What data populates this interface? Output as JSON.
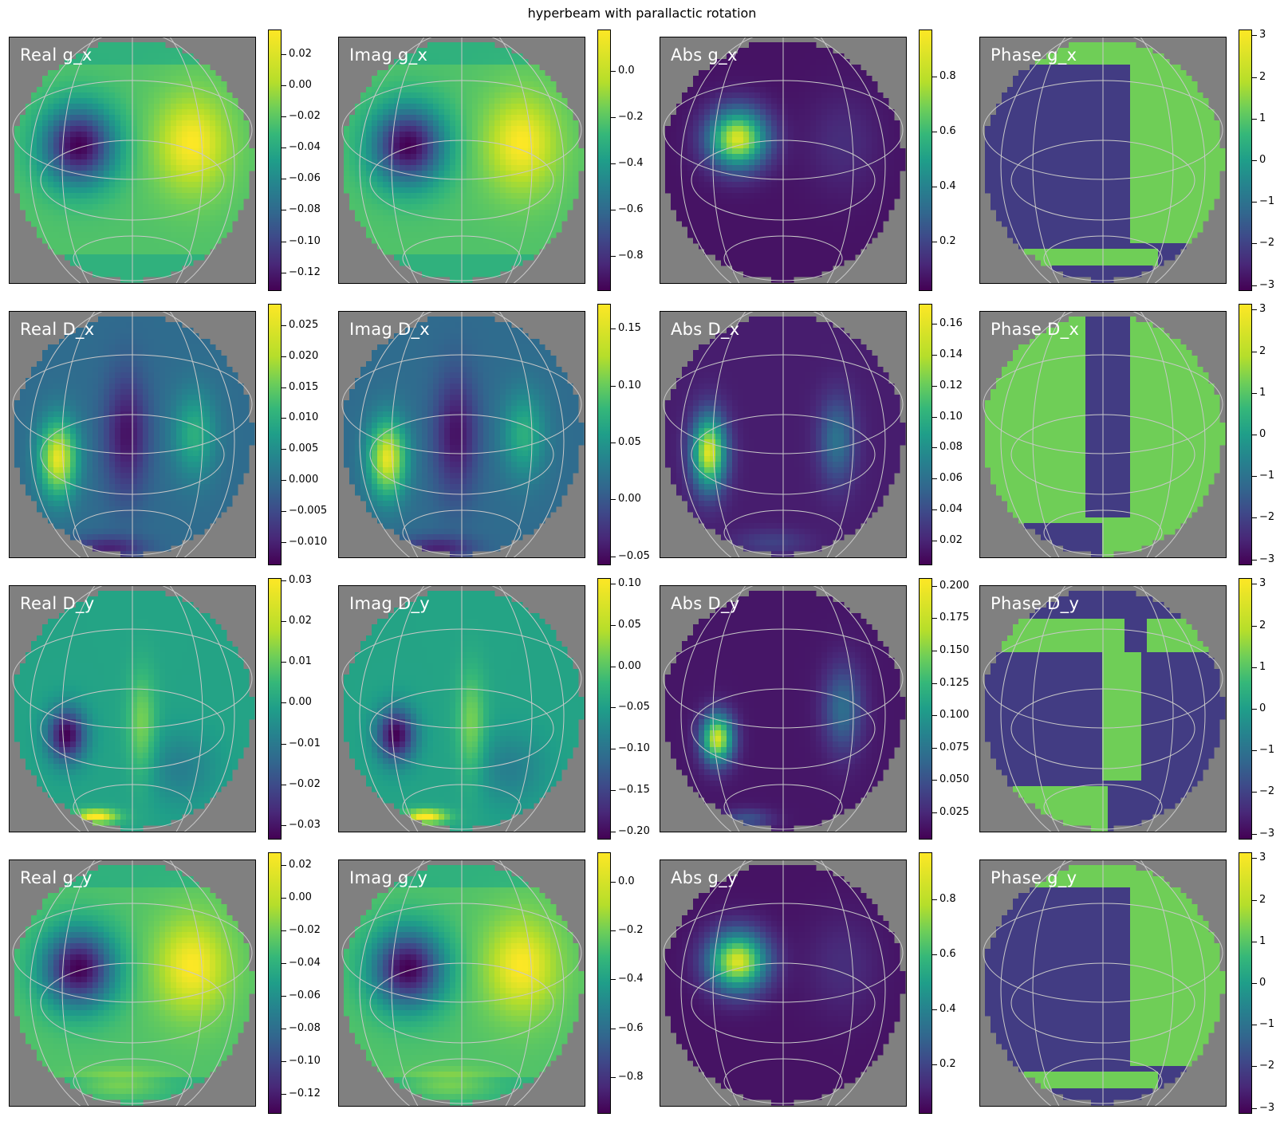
{
  "chart_data": {
    "type": "heatmap",
    "title": "hyperbeam with parallactic rotation",
    "colormap": "viridis",
    "background_color": "#808080",
    "graticule_color": "#c8c8c8",
    "label_color": "#ffffff",
    "panels": [
      {
        "label": "Real g_x",
        "quantity": "real",
        "component": "g_x",
        "ticks": [
          "0.02",
          "0.00",
          "−0.02",
          "−0.04",
          "−0.06",
          "−0.08",
          "−0.10",
          "−0.12"
        ],
        "tick_values": [
          0.02,
          0.0,
          -0.02,
          -0.04,
          -0.06,
          -0.08,
          -0.1,
          -0.12
        ],
        "vmin": -0.132,
        "vmax": 0.036
      },
      {
        "label": "Imag g_x",
        "quantity": "imag",
        "component": "g_x",
        "ticks": [
          "0.0",
          "−0.2",
          "−0.4",
          "−0.6",
          "−0.8"
        ],
        "tick_values": [
          0.0,
          -0.2,
          -0.4,
          -0.6,
          -0.8
        ],
        "vmin": -0.95,
        "vmax": 0.18
      },
      {
        "label": "Abs g_x",
        "quantity": "abs",
        "component": "g_x",
        "ticks": [
          "0.8",
          "0.6",
          "0.4",
          "0.2"
        ],
        "tick_values": [
          0.8,
          0.6,
          0.4,
          0.2
        ],
        "vmin": 0.02,
        "vmax": 0.97
      },
      {
        "label": "Phase g_x",
        "quantity": "phase",
        "component": "g_x",
        "ticks": [
          "3",
          "2",
          "1",
          "0",
          "−1",
          "−2",
          "−3"
        ],
        "tick_values": [
          3,
          2,
          1,
          0,
          -1,
          -2,
          -3
        ],
        "vmin": -3.14,
        "vmax": 3.14
      },
      {
        "label": "Real D_x",
        "quantity": "real",
        "component": "D_x",
        "ticks": [
          "0.025",
          "0.020",
          "0.015",
          "0.010",
          "0.005",
          "0.000",
          "−0.005",
          "−0.010"
        ],
        "tick_values": [
          0.025,
          0.02,
          0.015,
          0.01,
          0.005,
          0.0,
          -0.005,
          -0.01
        ],
        "vmin": -0.0138,
        "vmax": 0.0285
      },
      {
        "label": "Imag D_x",
        "quantity": "imag",
        "component": "D_x",
        "ticks": [
          "0.15",
          "0.10",
          "0.05",
          "0.00",
          "−0.05"
        ],
        "tick_values": [
          0.15,
          0.1,
          0.05,
          0.0,
          -0.05
        ],
        "vmin": -0.058,
        "vmax": 0.172
      },
      {
        "label": "Abs D_x",
        "quantity": "abs",
        "component": "D_x",
        "ticks": [
          "0.16",
          "0.14",
          "0.12",
          "0.10",
          "0.08",
          "0.06",
          "0.04",
          "0.02"
        ],
        "tick_values": [
          0.16,
          0.14,
          0.12,
          0.1,
          0.08,
          0.06,
          0.04,
          0.02
        ],
        "vmin": 0.004,
        "vmax": 0.173
      },
      {
        "label": "Phase D_x",
        "quantity": "phase",
        "component": "D_x",
        "ticks": [
          "3",
          "2",
          "1",
          "0",
          "−1",
          "−2",
          "−3"
        ],
        "tick_values": [
          3,
          2,
          1,
          0,
          -1,
          -2,
          -3
        ],
        "vmin": -3.14,
        "vmax": 3.14
      },
      {
        "label": "Real D_y",
        "quantity": "real",
        "component": "D_y",
        "ticks": [
          "0.03",
          "0.02",
          "0.01",
          "0.00",
          "−0.01",
          "−0.02",
          "−0.03"
        ],
        "tick_values": [
          0.03,
          0.02,
          0.01,
          0.0,
          -0.01,
          -0.02,
          -0.03
        ],
        "vmin": -0.0335,
        "vmax": 0.0305
      },
      {
        "label": "Imag D_y",
        "quantity": "imag",
        "component": "D_y",
        "ticks": [
          "0.10",
          "0.05",
          "0.00",
          "−0.05",
          "−0.10",
          "−0.15",
          "−0.20"
        ],
        "tick_values": [
          0.1,
          0.05,
          0.0,
          -0.05,
          -0.1,
          -0.15,
          -0.2
        ],
        "vmin": -0.21,
        "vmax": 0.107
      },
      {
        "label": "Abs D_y",
        "quantity": "abs",
        "component": "D_y",
        "ticks": [
          "0.200",
          "0.175",
          "0.150",
          "0.125",
          "0.100",
          "0.075",
          "0.050",
          "0.025"
        ],
        "tick_values": [
          0.2,
          0.175,
          0.15,
          0.125,
          0.1,
          0.075,
          0.05,
          0.025
        ],
        "vmin": 0.004,
        "vmax": 0.206
      },
      {
        "label": "Phase D_y",
        "quantity": "phase",
        "component": "D_y",
        "ticks": [
          "3",
          "2",
          "1",
          "0",
          "−1",
          "−2",
          "−3"
        ],
        "tick_values": [
          3,
          2,
          1,
          0,
          -1,
          -2,
          -3
        ],
        "vmin": -3.14,
        "vmax": 3.14
      },
      {
        "label": "Real g_y",
        "quantity": "real",
        "component": "g_y",
        "ticks": [
          "0.02",
          "0.00",
          "−0.02",
          "−0.04",
          "−0.06",
          "−0.08",
          "−0.10",
          "−0.12"
        ],
        "tick_values": [
          0.02,
          0.0,
          -0.02,
          -0.04,
          -0.06,
          -0.08,
          -0.1,
          -0.12
        ],
        "vmin": -0.132,
        "vmax": 0.028
      },
      {
        "label": "Imag g_y",
        "quantity": "imag",
        "component": "g_y",
        "ticks": [
          "0.0",
          "−0.2",
          "−0.4",
          "−0.6",
          "−0.8"
        ],
        "tick_values": [
          0.0,
          -0.2,
          -0.4,
          -0.6,
          -0.8
        ],
        "vmin": -0.95,
        "vmax": 0.12
      },
      {
        "label": "Abs g_y",
        "quantity": "abs",
        "component": "g_y",
        "ticks": [
          "0.8",
          "0.6",
          "0.4",
          "0.2"
        ],
        "tick_values": [
          0.8,
          0.6,
          0.4,
          0.2
        ],
        "vmin": 0.02,
        "vmax": 0.97
      },
      {
        "label": "Phase g_y",
        "quantity": "phase",
        "component": "g_y",
        "ticks": [
          "3",
          "2",
          "1",
          "0",
          "−1",
          "−2",
          "−3"
        ],
        "tick_values": [
          3,
          2,
          1,
          0,
          -1,
          -2,
          -3
        ],
        "vmin": -3.14,
        "vmax": 3.14
      }
    ]
  }
}
